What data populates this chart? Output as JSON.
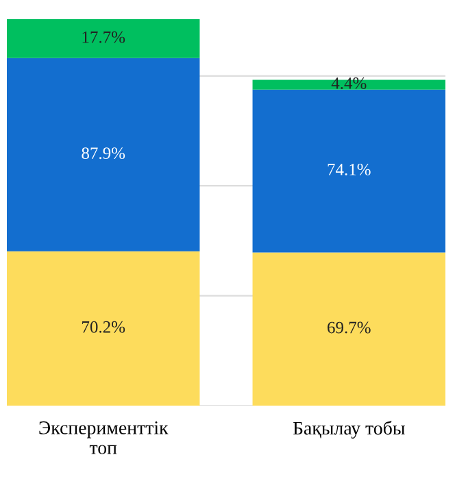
{
  "chart_data": {
    "type": "bar",
    "stacked": true,
    "categories": [
      "Эксперименттік\nтоп",
      "Бақылау тобы"
    ],
    "series": [
      {
        "color": "#fddc5c",
        "values": [
          70.2,
          69.7
        ],
        "value_labels": [
          "70.2%",
          "69.7%"
        ]
      },
      {
        "color": "#136ecf",
        "values": [
          87.9,
          74.1
        ],
        "value_labels": [
          "87.9%",
          "74.1%"
        ]
      },
      {
        "color": "#00bf5f",
        "values": [
          17.7,
          4.4
        ],
        "value_labels": [
          "17.7%",
          "4.4%"
        ]
      }
    ],
    "ylim": [
      0,
      175.8
    ],
    "yticks": [
      {
        "value": 0,
        "label": null
      },
      {
        "value": 50,
        "label": null
      },
      {
        "value": 100,
        "label": null
      },
      {
        "value": 150,
        "label": null
      }
    ],
    "tick_labels": "x",
    "grid": "y",
    "legend": false
  }
}
